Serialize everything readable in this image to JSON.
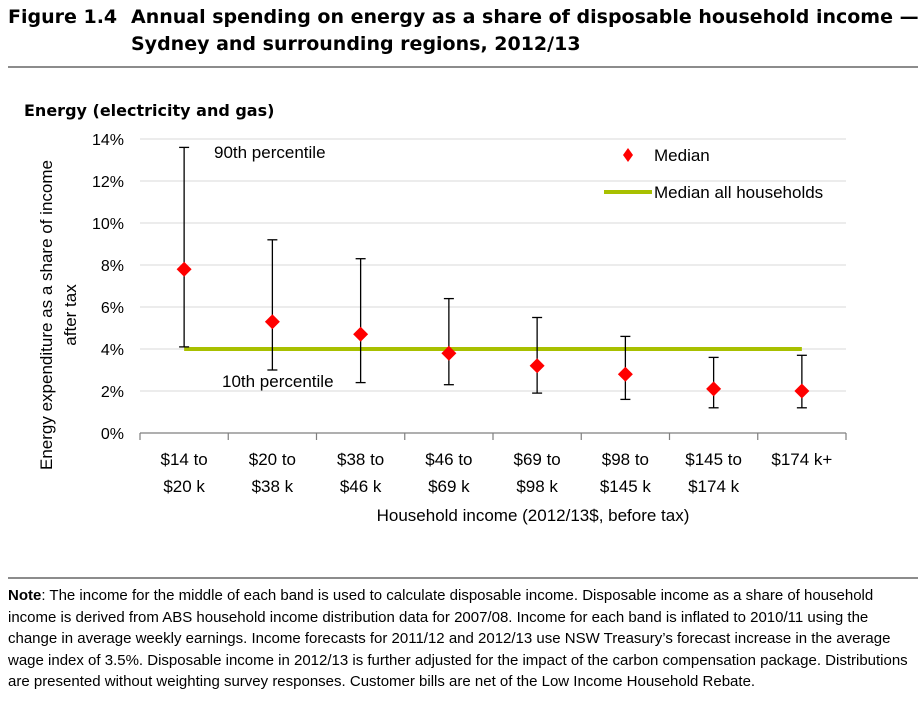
{
  "figure": {
    "number": "Figure 1.4",
    "title_line1": "Annual spending on energy as a share of disposable household income —",
    "title_line2": "Sydney and surrounding regions, 2012/13"
  },
  "panel_title": "Energy (electricity and gas)",
  "chart_data": {
    "type": "scatter",
    "title": "Energy (electricity and gas)",
    "ylabel_line1": "Energy expenditure as a share of income",
    "ylabel_line2": "after tax",
    "xlabel": "Household income (2012/13$, before tax)",
    "ylim": [
      0,
      14
    ],
    "y_ticks": [
      "0%",
      "2%",
      "4%",
      "6%",
      "8%",
      "10%",
      "12%",
      "14%"
    ],
    "y_tick_values": [
      0,
      2,
      4,
      6,
      8,
      10,
      12,
      14
    ],
    "categories": [
      [
        "$14 to",
        "$20 k"
      ],
      [
        "$20 to",
        "$38 k"
      ],
      [
        "$38 to",
        "$46 k"
      ],
      [
        "$46 to",
        "$69 k"
      ],
      [
        "$69 to",
        "$98 k"
      ],
      [
        "$98 to",
        "$145 k"
      ],
      [
        "$145 to",
        "$174 k"
      ],
      [
        "$174 k+",
        ""
      ]
    ],
    "series": [
      {
        "name": "Median",
        "marker": "diamond",
        "color": "#ff0000",
        "values": [
          7.8,
          5.3,
          4.7,
          3.8,
          3.2,
          2.8,
          2.1,
          2.0
        ]
      },
      {
        "name": "Median all households",
        "type": "line",
        "color": "#a8c000",
        "value": 4.0
      }
    ],
    "percentile_90": [
      13.6,
      9.2,
      8.3,
      6.4,
      5.5,
      4.6,
      3.6,
      3.7
    ],
    "percentile_10": [
      4.1,
      3.0,
      2.4,
      2.3,
      1.9,
      1.6,
      1.2,
      1.2
    ],
    "annotations": {
      "p90": "90th percentile",
      "p10": "10th percentile"
    },
    "grid": "horizontal",
    "legend_position": "top-right"
  },
  "note": {
    "label": "Note",
    "text": ": The income for the middle of each band is used to calculate disposable income.  Disposable income as a share of household income is derived from ABS household income distribution data for 2007/08.  Income for each band is inflated to 2010/11 using the change in average weekly earnings.  Income forecasts for 2011/12 and 2012/13 use NSW Treasury’s forecast increase in the average wage index of 3.5%.  Disposable income in 2012/13 is further adjusted for the impact of the carbon compensation package.  Distributions are presented without weighting survey responses.  Customer bills are net of the Low Income Household Rebate."
  }
}
